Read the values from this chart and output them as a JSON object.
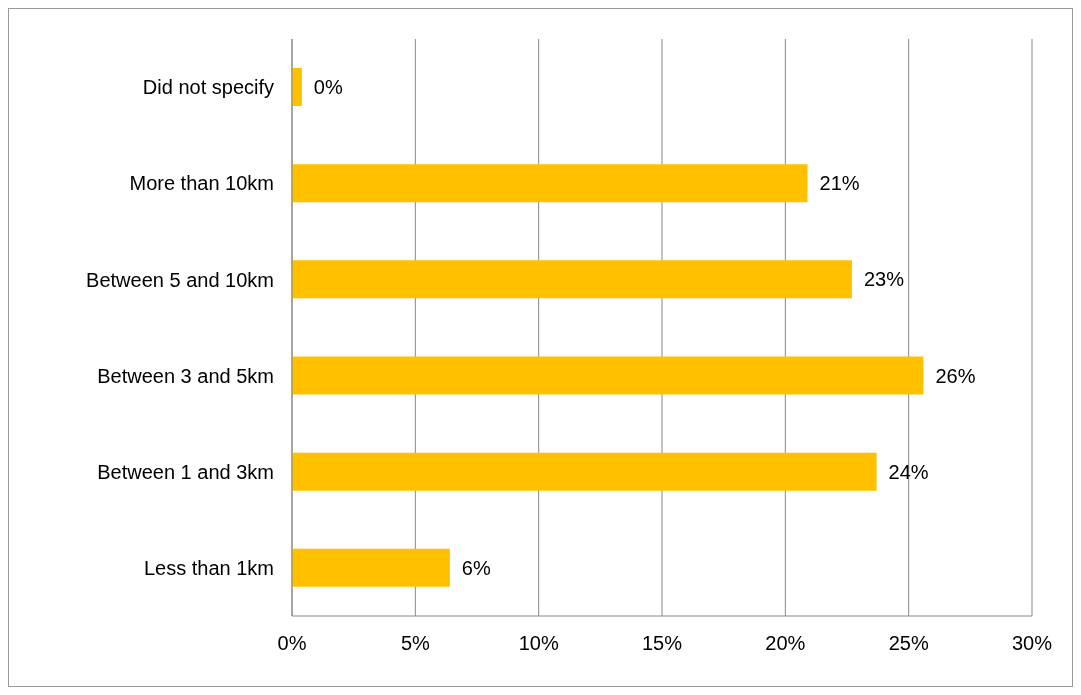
{
  "chart_data": {
    "type": "bar",
    "orientation": "horizontal",
    "categories": [
      "Did not specify",
      "More than 10km",
      "Between 5 and 10km",
      "Between 3 and 5km",
      "Between 1 and 3km",
      "Less than 1km"
    ],
    "values": [
      0.4,
      20.9,
      22.7,
      25.6,
      23.7,
      6.4
    ],
    "value_labels": [
      "0%",
      "21%",
      "23%",
      "26%",
      "24%",
      "6%"
    ],
    "color": "#ffc000",
    "xlim": [
      0,
      30
    ],
    "xticks": [
      {
        "value": 0,
        "label": "0%"
      },
      {
        "value": 5,
        "label": "5%"
      },
      {
        "value": 10,
        "label": "10%"
      },
      {
        "value": 15,
        "label": "15%"
      },
      {
        "value": 20,
        "label": "20%"
      },
      {
        "value": 25,
        "label": "25%"
      },
      {
        "value": 30,
        "label": "30%"
      }
    ],
    "grid": "x",
    "legend": false
  }
}
